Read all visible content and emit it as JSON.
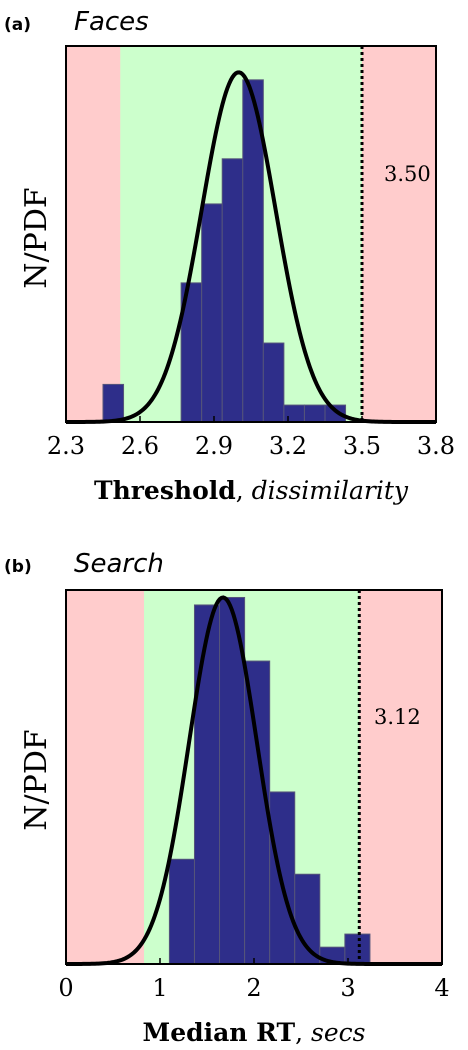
{
  "colors": {
    "reject_region": "#ffcccc",
    "accept_region": "#ccffcc",
    "bar_fill": "#2e2e8a",
    "bar_edge": "#55557a",
    "curve": "#000000"
  },
  "chart_data": [
    {
      "type": "bar",
      "panel_letter": "(a)",
      "panel_name": "Faces",
      "ylabel": "N/PDF",
      "xlabel_bold": "Threshold",
      "xlabel_sep": ", ",
      "xlabel_italic": "dissimilarity",
      "xlim": [
        2.3,
        3.8
      ],
      "ylim": [
        0,
        1
      ],
      "xticks": [
        2.3,
        2.6,
        2.9,
        3.2,
        3.5,
        3.8
      ],
      "xtick_labels": [
        "2.3",
        "2.6",
        "2.9",
        "3.2",
        "3.5",
        "3.8"
      ],
      "accept_region": [
        2.52,
        3.5
      ],
      "threshold_value": 3.5,
      "threshold_label": "3.50",
      "bin_width": 0.0833,
      "bins": [
        {
          "x0": 2.45,
          "height": 0.1
        },
        {
          "x0": 2.7667,
          "height": 0.37
        },
        {
          "x0": 2.85,
          "height": 0.58
        },
        {
          "x0": 2.9333,
          "height": 0.7
        },
        {
          "x0": 3.0167,
          "height": 0.91
        },
        {
          "x0": 3.1,
          "height": 0.21
        },
        {
          "x0": 3.1833,
          "height": 0.045
        },
        {
          "x0": 3.2667,
          "height": 0.045
        },
        {
          "x0": 3.35,
          "height": 0.045
        }
      ],
      "curve": {
        "mean": 3.0,
        "sd": 0.15,
        "peak": 0.93
      }
    },
    {
      "type": "bar",
      "panel_letter": "(b)",
      "panel_name": "Search",
      "ylabel": "N/PDF",
      "xlabel_bold": "Median RT",
      "xlabel_sep": ", ",
      "xlabel_italic": "secs",
      "xlim": [
        0,
        4
      ],
      "ylim": [
        0,
        1
      ],
      "xticks": [
        0,
        1,
        2,
        3,
        4
      ],
      "xtick_labels": [
        "0",
        "1",
        "2",
        "3",
        "4"
      ],
      "accept_region": [
        0.83,
        3.12
      ],
      "threshold_value": 3.12,
      "threshold_label": "3.12",
      "bin_width": 0.2667,
      "bins": [
        {
          "x0": 1.1,
          "height": 0.28
        },
        {
          "x0": 1.3667,
          "height": 0.96
        },
        {
          "x0": 1.6333,
          "height": 0.98
        },
        {
          "x0": 1.9,
          "height": 0.81
        },
        {
          "x0": 2.1667,
          "height": 0.46
        },
        {
          "x0": 2.4333,
          "height": 0.24
        },
        {
          "x0": 2.7,
          "height": 0.045
        },
        {
          "x0": 2.9667,
          "height": 0.08
        }
      ],
      "curve": {
        "mean": 1.67,
        "sd": 0.36,
        "peak": 0.98
      }
    }
  ]
}
